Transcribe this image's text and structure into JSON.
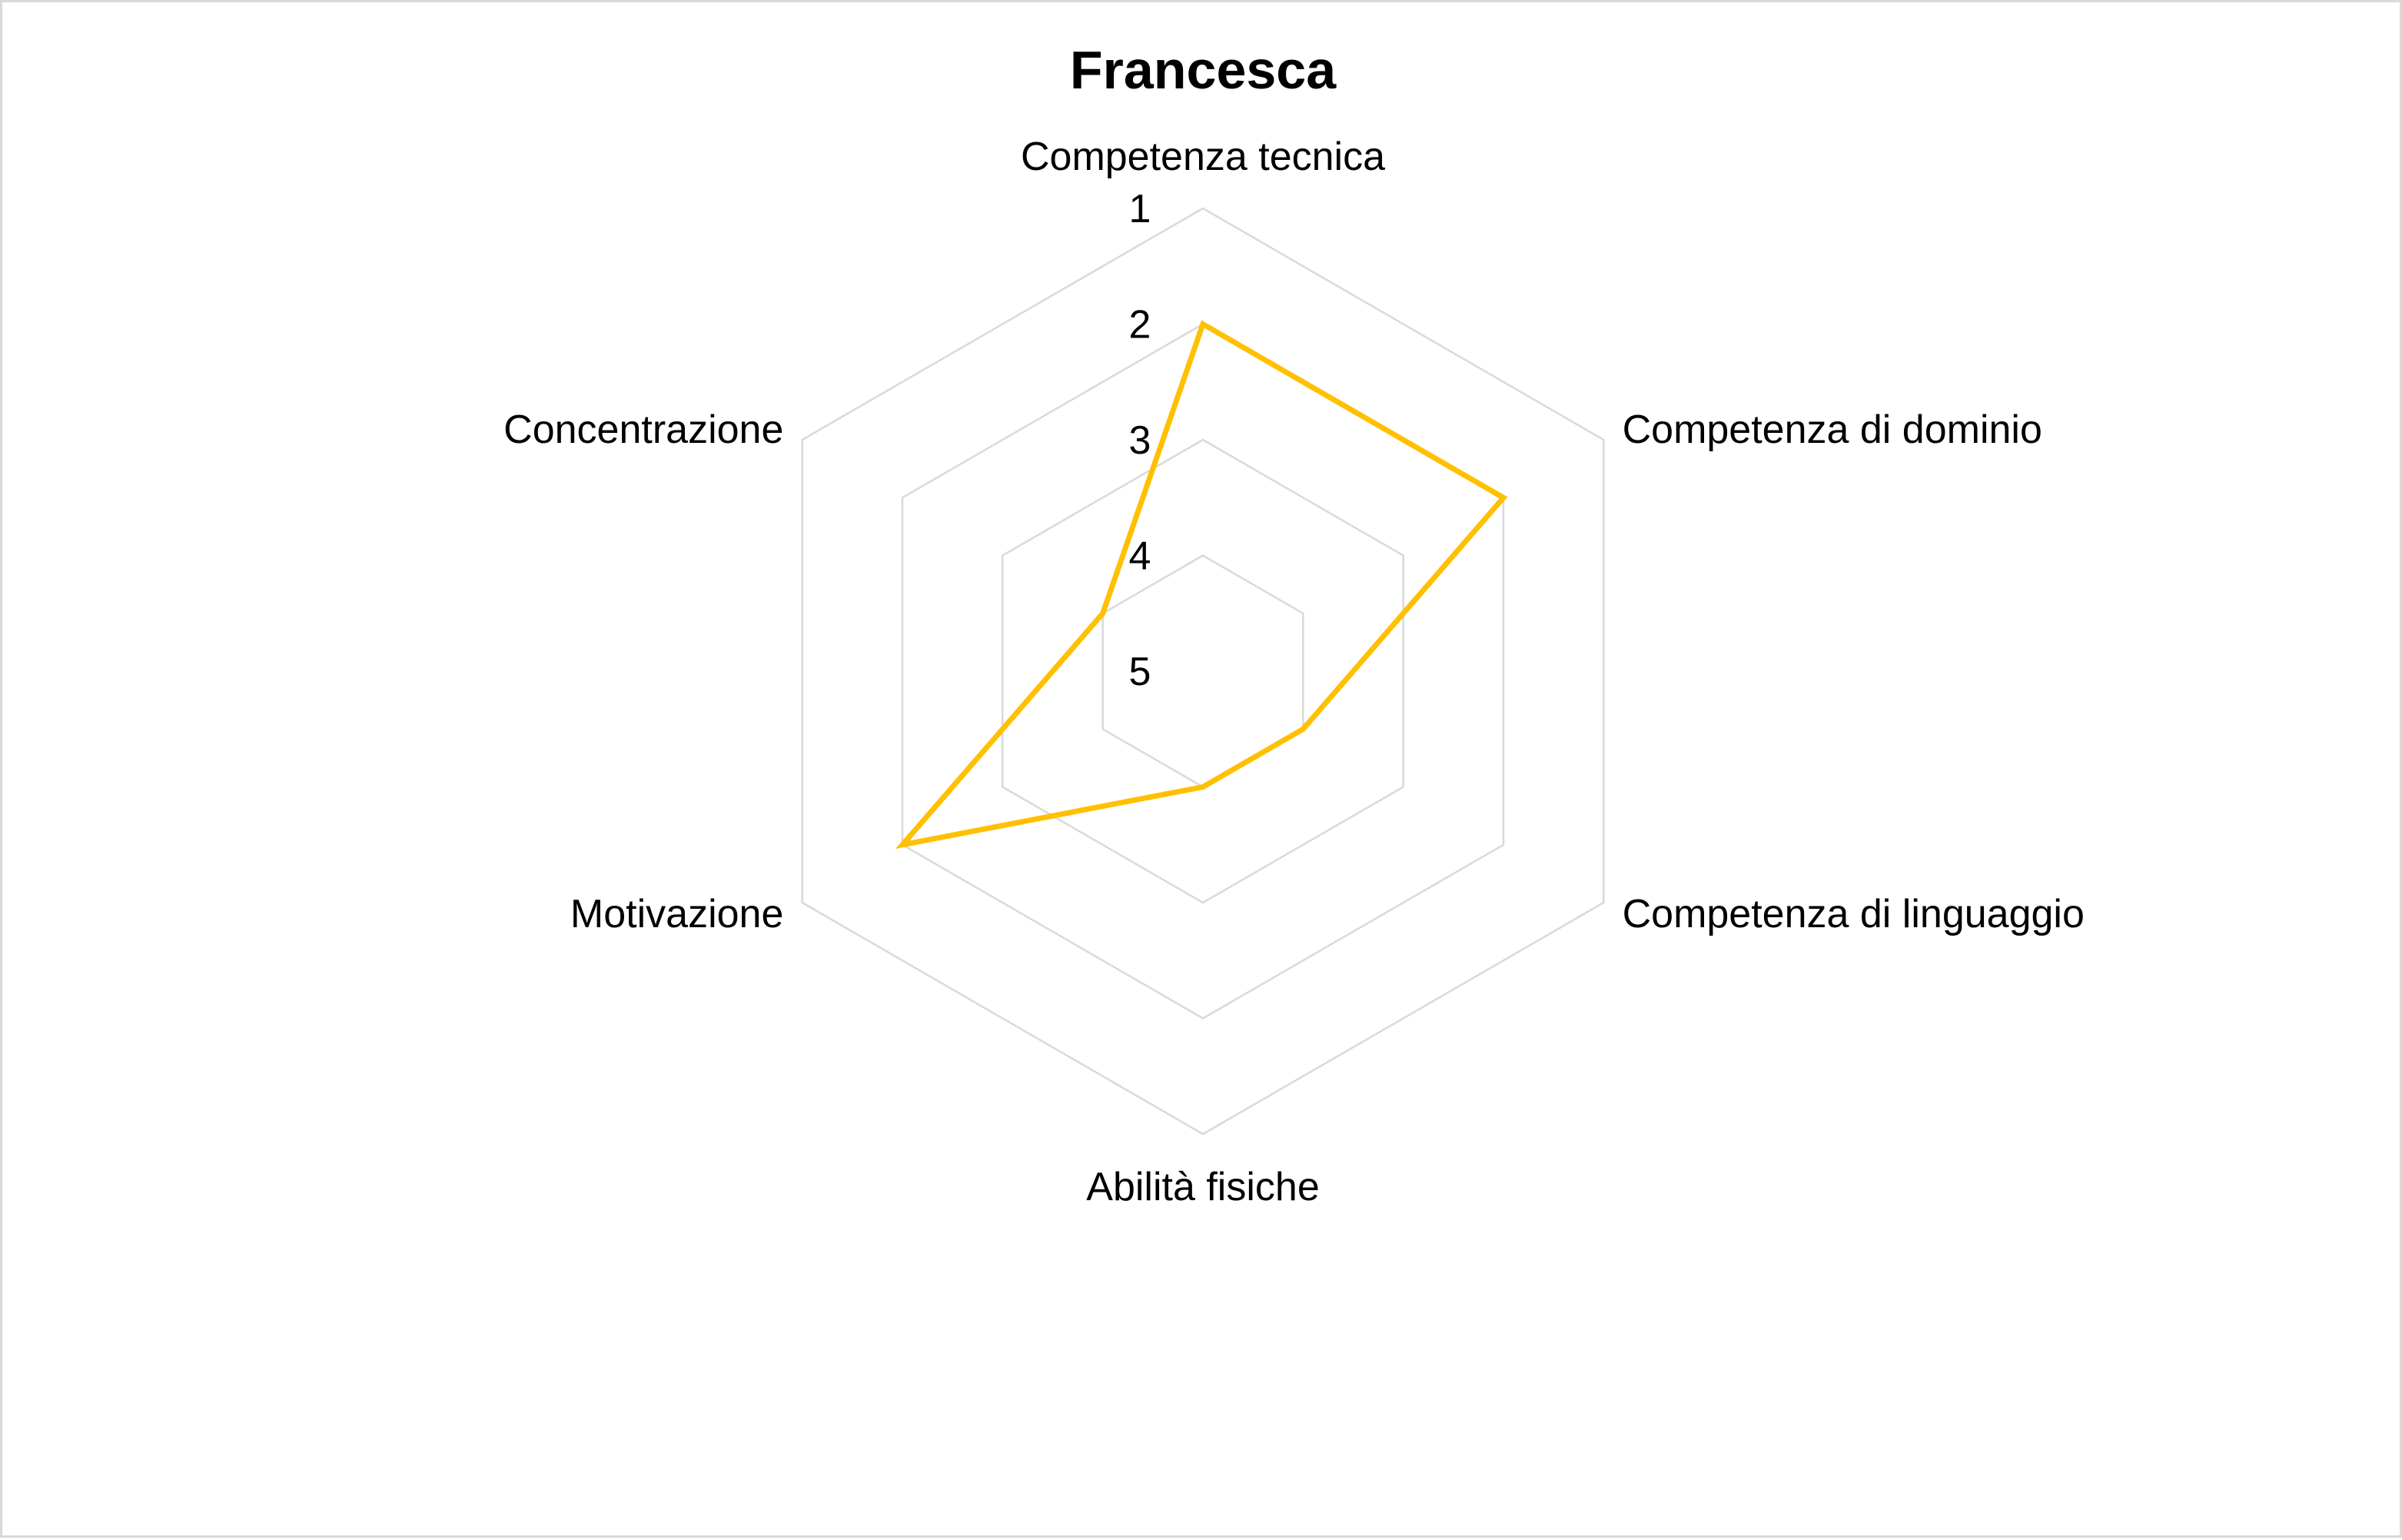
{
  "chart_data": {
    "type": "radar",
    "title": "Francesca",
    "axes": [
      "Competenza tecnica",
      "Competenza di dominio",
      "Competenza di linguaggio",
      "Abilità fisiche",
      "Motivazione",
      "Concentrazione"
    ],
    "radial_ticks": [
      "1",
      "2",
      "3",
      "4",
      "5"
    ],
    "radial_range": [
      1,
      5
    ],
    "radial_reversed": true,
    "grid": true,
    "legend": "none",
    "series": [
      {
        "values": [
          2,
          2,
          4,
          4,
          2,
          4
        ],
        "color": "#FFC000"
      }
    ]
  }
}
